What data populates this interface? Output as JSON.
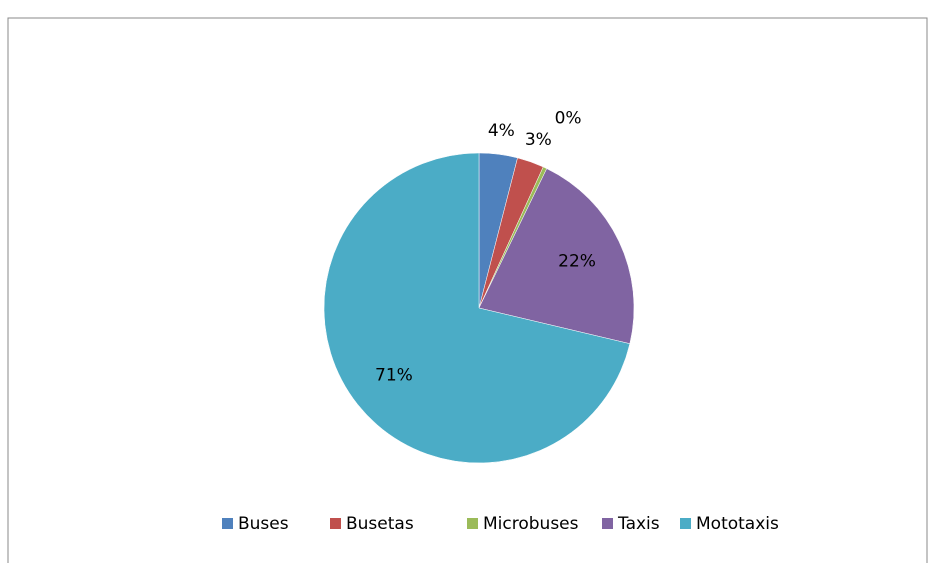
{
  "chart_data": {
    "type": "pie",
    "categories": [
      "Buses",
      "Busetas",
      "Microbuses",
      "Taxis",
      "Mototaxis"
    ],
    "values": [
      4,
      2.8,
      0.4,
      21.5,
      71.3
    ],
    "value_labels": [
      "4%",
      "3%",
      "0%",
      "22%",
      "71%"
    ],
    "colors": [
      "#4f81bd",
      "#c0504d",
      "#9bbb59",
      "#8064a2",
      "#4bacc6"
    ],
    "legend": "bottom"
  }
}
